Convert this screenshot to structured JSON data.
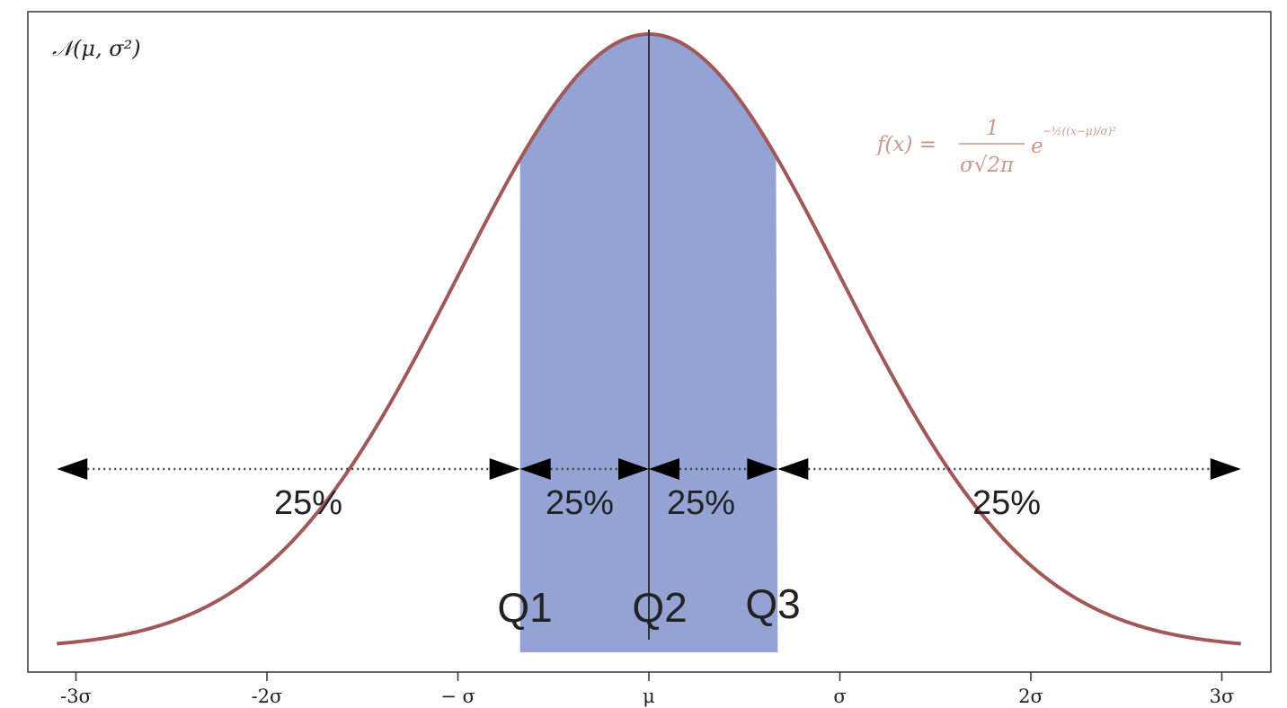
{
  "chart_data": {
    "type": "area",
    "distribution_label": "𝒩(μ, σ²)",
    "formula": {
      "lhs": "f(x) =",
      "numerator": "1",
      "denominator": "σ√2π",
      "exp_base": "e",
      "exponent": "−½((x−μ)/σ)²"
    },
    "curve_color": "#a05858",
    "fill_color": "#94a3d4",
    "median_line_color": "#333333",
    "x_ticks": [
      {
        "value": -3,
        "label": "-3σ"
      },
      {
        "value": -2,
        "label": "-2σ"
      },
      {
        "value": -1,
        "label": "− σ"
      },
      {
        "value": 0,
        "label": "μ"
      },
      {
        "value": 1,
        "label": "σ"
      },
      {
        "value": 2,
        "label": "2σ"
      },
      {
        "value": 3,
        "label": "3σ"
      }
    ],
    "xlim": [
      -3.25,
      3.25
    ],
    "quartiles": [
      {
        "name": "Q1",
        "value": -0.6745
      },
      {
        "name": "Q2",
        "value": 0
      },
      {
        "name": "Q3",
        "value": 0.6745
      }
    ],
    "segments": [
      {
        "label": "25%",
        "from": -3.1,
        "to": -0.6745
      },
      {
        "label": "25%",
        "from": -0.6745,
        "to": 0
      },
      {
        "label": "25%",
        "from": 0,
        "to": 0.6745
      },
      {
        "label": "25%",
        "from": 0.6745,
        "to": 3.1
      }
    ]
  }
}
